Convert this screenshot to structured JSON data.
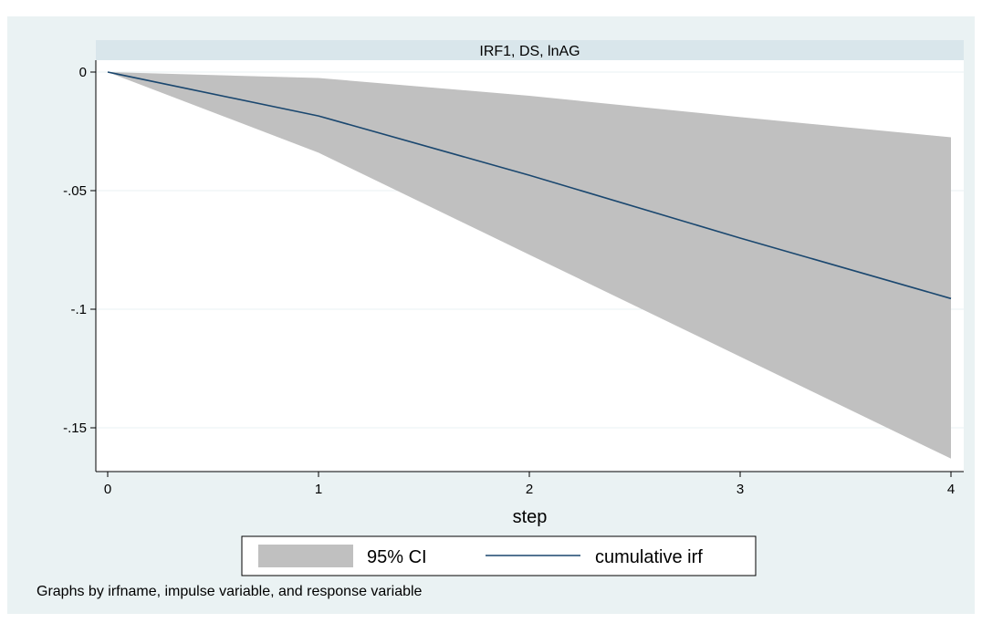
{
  "colors": {
    "outer_bg": "#eaf2f3",
    "plot_bg": "#ffffff",
    "panel_title_bg": "#d9e6eb",
    "ci_fill": "#c0c0c0",
    "irf_line": "#1a476f",
    "grid": "#eaf2f3"
  },
  "note": "Graphs by irfname, impulse variable, and response variable",
  "chart_data": {
    "type": "area",
    "title": "IRF1, DS, lnAG",
    "xlabel": "step",
    "ylabel": "",
    "xlim": [
      0,
      4
    ],
    "ylim": [
      -0.165,
      0.002
    ],
    "x_ticks": [
      0,
      1,
      2,
      3,
      4
    ],
    "x_tick_labels": [
      "0",
      "1",
      "2",
      "3",
      "4"
    ],
    "y_ticks": [
      0,
      -0.05,
      -0.1,
      -0.15
    ],
    "y_tick_labels": [
      "0",
      "-.05",
      "-.1",
      "-.15"
    ],
    "grid": true,
    "legend_position": "bottom",
    "x": [
      0,
      1,
      2,
      3,
      4
    ],
    "series": [
      {
        "name": "95% CI",
        "kind": "band",
        "upper": [
          0,
          -0.0025,
          -0.01,
          -0.019,
          -0.0275
        ],
        "lower": [
          0,
          -0.034,
          -0.077,
          -0.12,
          -0.163
        ]
      },
      {
        "name": "cumulative irf",
        "kind": "line",
        "values": [
          0,
          -0.0185,
          -0.0435,
          -0.07,
          -0.0955
        ]
      }
    ],
    "legend": [
      "95% CI",
      "cumulative irf"
    ]
  }
}
